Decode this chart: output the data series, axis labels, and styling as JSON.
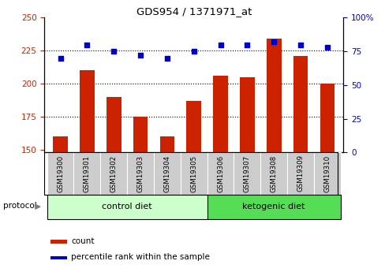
{
  "title": "GDS954 / 1371971_at",
  "samples": [
    "GSM19300",
    "GSM19301",
    "GSM19302",
    "GSM19303",
    "GSM19304",
    "GSM19305",
    "GSM19306",
    "GSM19307",
    "GSM19308",
    "GSM19309",
    "GSM19310"
  ],
  "bar_values": [
    160,
    210,
    190,
    175,
    160,
    187,
    206,
    205,
    234,
    221,
    200
  ],
  "dot_values": [
    70,
    80,
    75,
    72,
    70,
    75,
    80,
    80,
    82,
    80,
    78
  ],
  "ylim_left": [
    148,
    250
  ],
  "ylim_right": [
    0,
    100
  ],
  "yticks_left": [
    150,
    175,
    200,
    225,
    250
  ],
  "yticks_right": [
    0,
    25,
    50,
    75,
    100
  ],
  "bar_color": "#cc2200",
  "dot_color": "#0000cc",
  "bg_color": "#ffffff",
  "plot_bg": "#ffffff",
  "control_label": "control diet",
  "ketogenic_label": "ketogenic diet",
  "protocol_label": "protocol",
  "legend_count": "count",
  "legend_percentile": "percentile rank within the sample",
  "control_bg": "#ccffcc",
  "ketogenic_bg": "#55dd55",
  "sample_bg": "#cccccc",
  "bar_width": 0.55,
  "n_control": 6,
  "n_ketogenic": 5
}
